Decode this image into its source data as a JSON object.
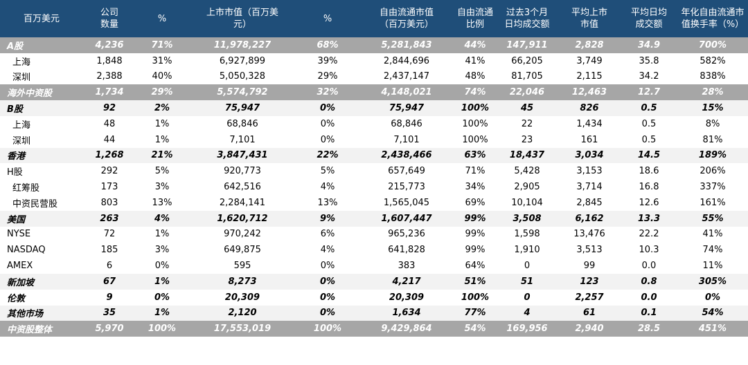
{
  "headers": [
    [
      "百万美元"
    ],
    [
      "公司",
      "数量"
    ],
    [
      "%"
    ],
    [
      "上市市值（百万美",
      "元）"
    ],
    [
      "%"
    ],
    [
      "自由流通市值",
      "（百万美元）"
    ],
    [
      "自由流通",
      "比例"
    ],
    [
      "过去3个月",
      "日均成交额"
    ],
    [
      "平均上市",
      "市值"
    ],
    [
      "平均日均",
      "成交额"
    ],
    [
      "年化自由流通市",
      "值换手率（%）"
    ]
  ],
  "rows": [
    {
      "style": "gray",
      "cells": [
        "A股",
        "4,236",
        "71%",
        "11,978,227",
        "68%",
        "5,281,843",
        "44%",
        "147,911",
        "2,828",
        "34.9",
        "700%"
      ]
    },
    {
      "style": "sub",
      "cells": [
        "上海",
        "1,848",
        "31%",
        "6,927,899",
        "39%",
        "2,844,696",
        "41%",
        "66,205",
        "3,749",
        "35.8",
        "582%"
      ]
    },
    {
      "style": "sub",
      "cells": [
        "深圳",
        "2,388",
        "40%",
        "5,050,328",
        "29%",
        "2,437,147",
        "48%",
        "81,705",
        "2,115",
        "34.2",
        "838%"
      ]
    },
    {
      "style": "gray",
      "cells": [
        "海外中资股",
        "1,734",
        "29%",
        "5,574,792",
        "32%",
        "4,148,021",
        "74%",
        "22,046",
        "12,463",
        "12.7",
        "28%"
      ]
    },
    {
      "style": "light",
      "cells": [
        "B股",
        "92",
        "2%",
        "75,947",
        "0%",
        "75,947",
        "100%",
        "45",
        "826",
        "0.5",
        "15%"
      ]
    },
    {
      "style": "sub",
      "cells": [
        "上海",
        "48",
        "1%",
        "68,846",
        "0%",
        "68,846",
        "100%",
        "22",
        "1,434",
        "0.5",
        "8%"
      ]
    },
    {
      "style": "sub",
      "cells": [
        "深圳",
        "44",
        "1%",
        "7,101",
        "0%",
        "7,101",
        "100%",
        "23",
        "161",
        "0.5",
        "81%"
      ]
    },
    {
      "style": "light",
      "cells": [
        "香港",
        "1,268",
        "21%",
        "3,847,431",
        "22%",
        "2,438,466",
        "63%",
        "18,437",
        "3,034",
        "14.5",
        "189%"
      ]
    },
    {
      "style": "plain",
      "cells": [
        "H股",
        "292",
        "5%",
        "920,773",
        "5%",
        "657,649",
        "71%",
        "5,428",
        "3,153",
        "18.6",
        "206%"
      ]
    },
    {
      "style": "sub",
      "cells": [
        "红筹股",
        "173",
        "3%",
        "642,516",
        "4%",
        "215,773",
        "34%",
        "2,905",
        "3,714",
        "16.8",
        "337%"
      ]
    },
    {
      "style": "sub",
      "cells": [
        "中资民营股",
        "803",
        "13%",
        "2,284,141",
        "13%",
        "1,565,045",
        "69%",
        "10,104",
        "2,845",
        "12.6",
        "161%"
      ]
    },
    {
      "style": "light",
      "cells": [
        "美国",
        "263",
        "4%",
        "1,620,712",
        "9%",
        "1,607,447",
        "99%",
        "3,508",
        "6,162",
        "13.3",
        "55%"
      ]
    },
    {
      "style": "plain",
      "cells": [
        "NYSE",
        "72",
        "1%",
        "970,242",
        "6%",
        "965,236",
        "99%",
        "1,598",
        "13,476",
        "22.2",
        "41%"
      ]
    },
    {
      "style": "plain",
      "cells": [
        "NASDAQ",
        "185",
        "3%",
        "649,875",
        "4%",
        "641,828",
        "99%",
        "1,910",
        "3,513",
        "10.3",
        "74%"
      ]
    },
    {
      "style": "plain",
      "cells": [
        "AMEX",
        "6",
        "0%",
        "595",
        "0%",
        "383",
        "64%",
        "0",
        "99",
        "0.0",
        "11%"
      ]
    },
    {
      "style": "light",
      "cells": [
        "新加坡",
        "67",
        "1%",
        "8,273",
        "0%",
        "4,217",
        "51%",
        "51",
        "123",
        "0.8",
        "305%"
      ]
    },
    {
      "style": "bold-white",
      "cells": [
        "伦敦",
        "9",
        "0%",
        "20,309",
        "0%",
        "20,309",
        "100%",
        "0",
        "2,257",
        "0.0",
        "0%"
      ]
    },
    {
      "style": "light",
      "cells": [
        "其他市场",
        "35",
        "1%",
        "2,120",
        "0%",
        "1,634",
        "77%",
        "4",
        "61",
        "0.1",
        "54%"
      ]
    },
    {
      "style": "gray",
      "cells": [
        "中资股整体",
        "5,970",
        "100%",
        "17,553,019",
        "100%",
        "9,429,864",
        "54%",
        "169,956",
        "2,940",
        "28.5",
        "451%"
      ]
    }
  ]
}
